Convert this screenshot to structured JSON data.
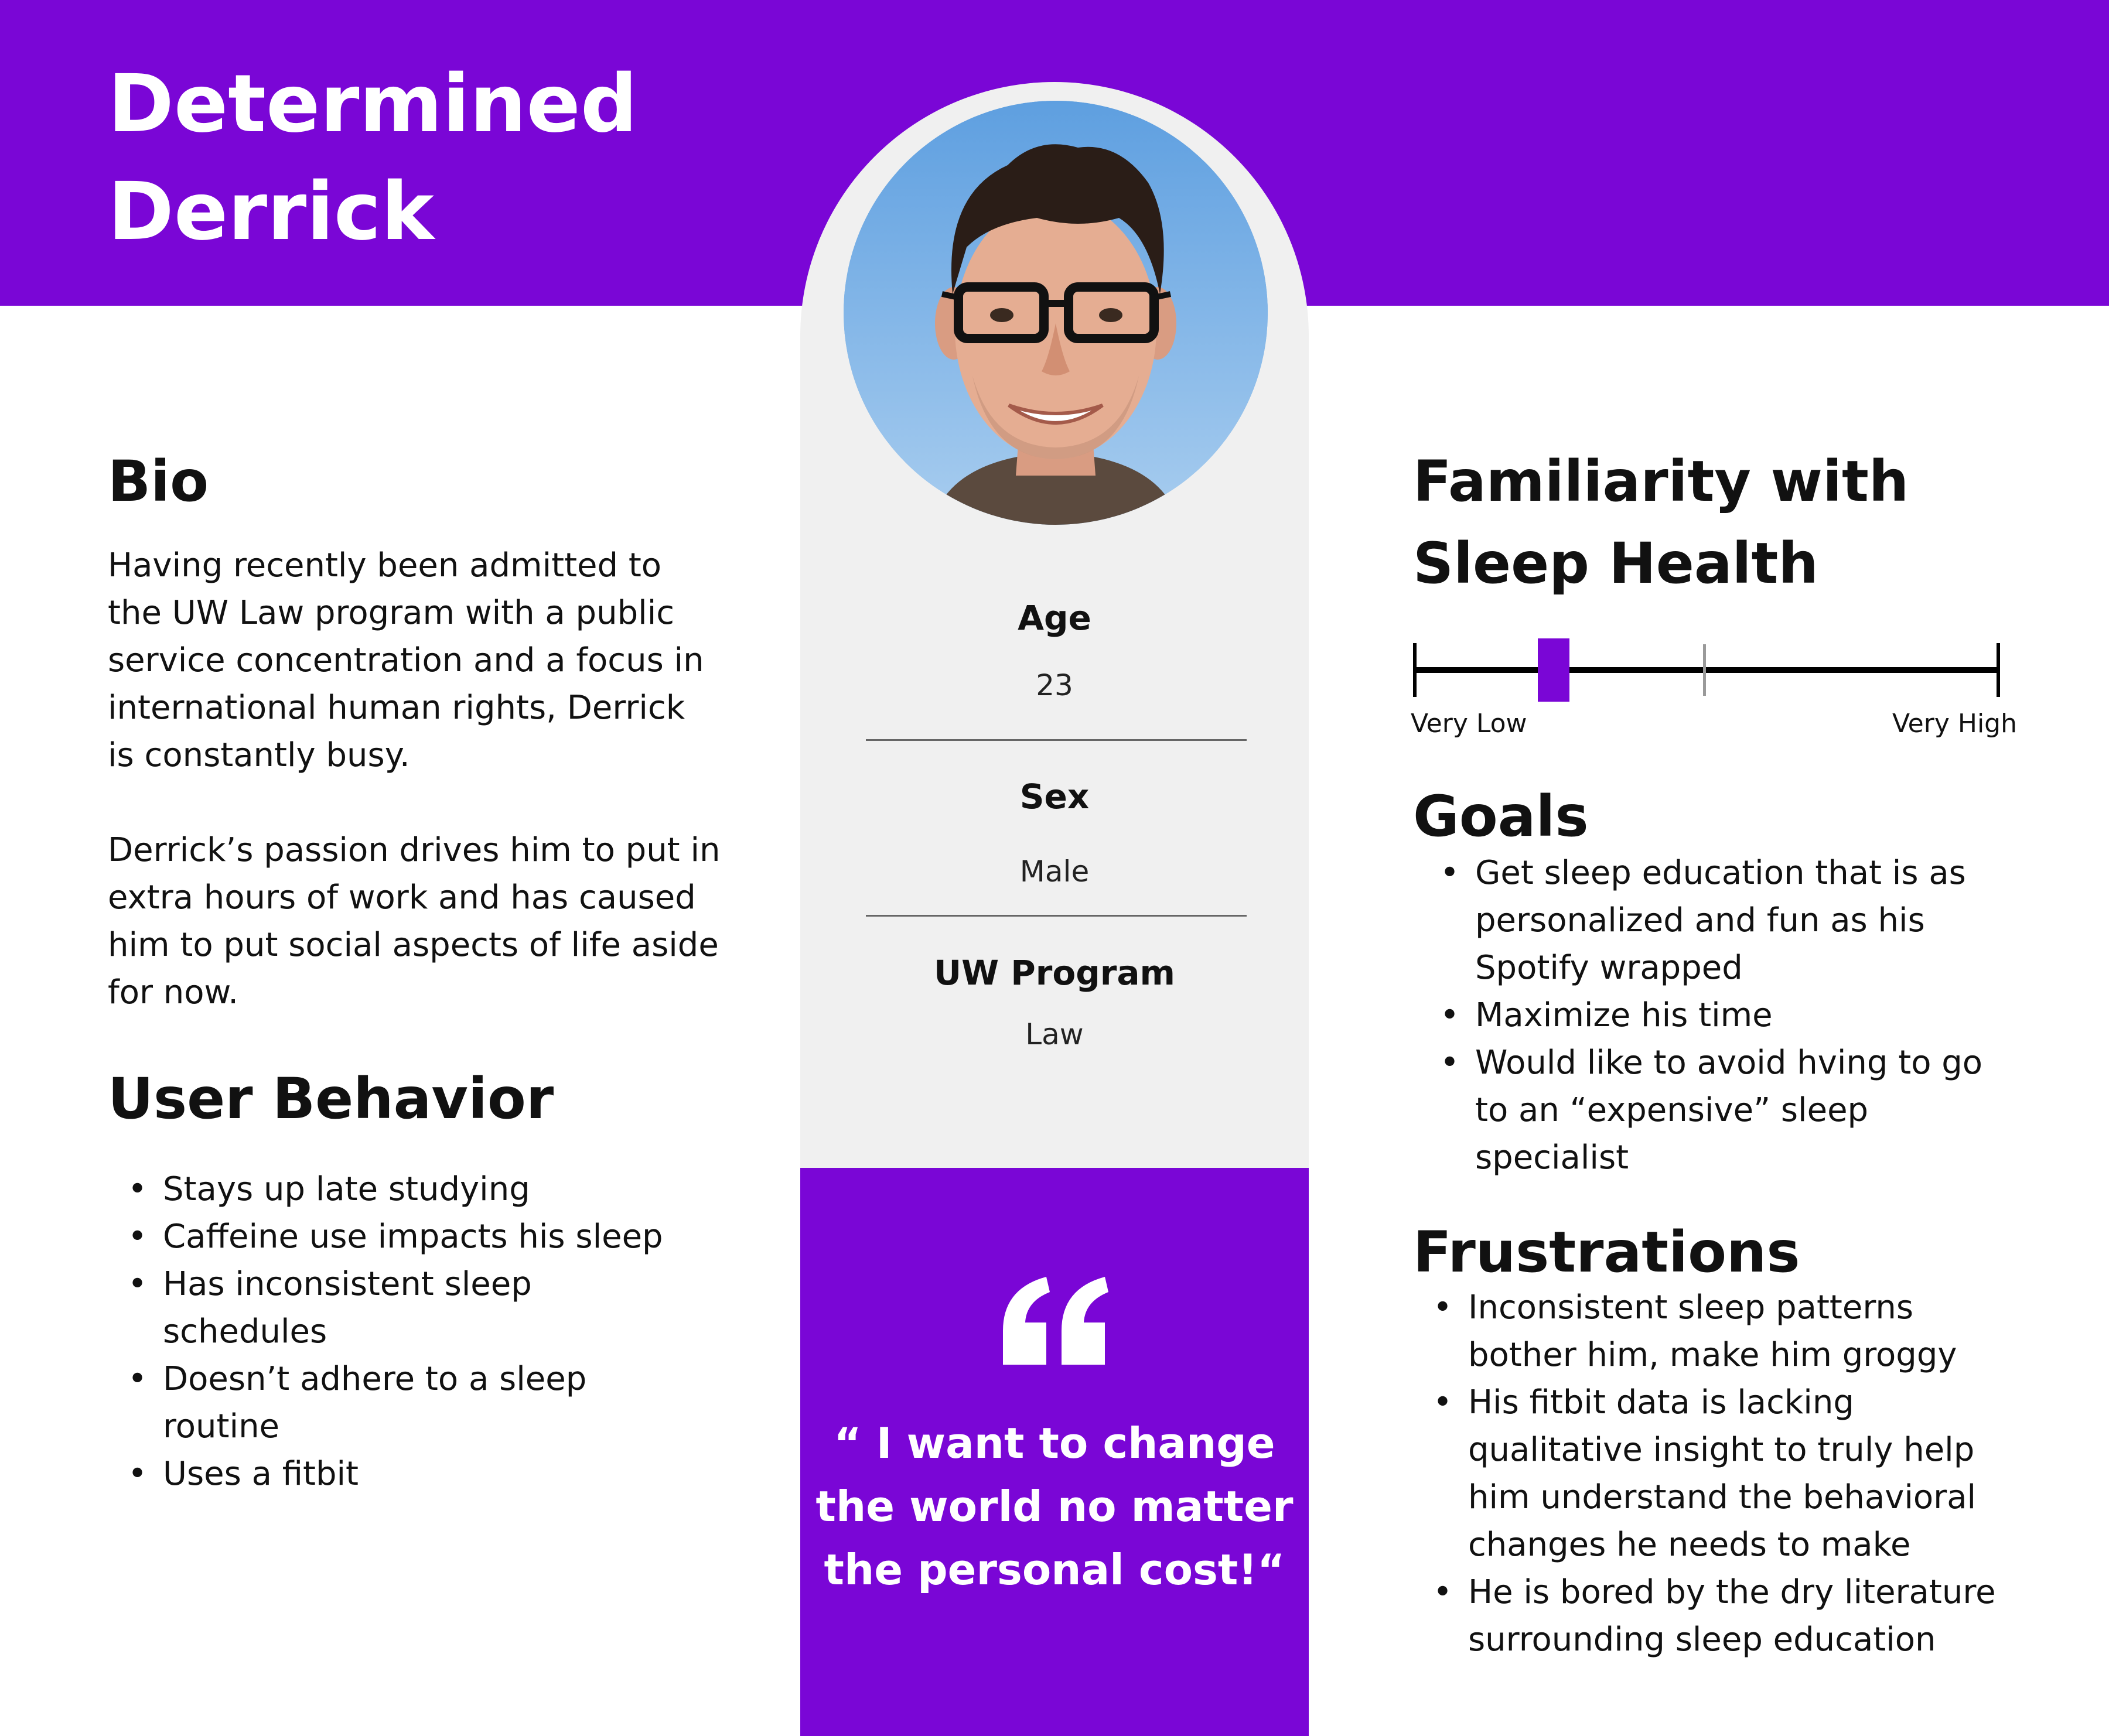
{
  "persona": {
    "title_line1": "Determined",
    "title_line2": "Derrick",
    "avatar": "portrait-photo"
  },
  "bio": {
    "heading": "Bio",
    "paragraph1": "Having recently been admitted to\nthe UW Law program with a public\nservice concentration and a focus in\ninternational human rights, Derrick\nis constantly busy.",
    "paragraph2": "Derrick’s passion drives him to put in\nextra hours of work and has caused\nhim to put social aspects of life aside\nfor now."
  },
  "user_behavior": {
    "heading": "User Behavior",
    "items": [
      "Stays up late studying",
      "Caffeine use impacts his sleep",
      "Has inconsistent sleep\nschedules",
      "Doesn’t adhere to a sleep\nroutine",
      "Uses a fitbit"
    ]
  },
  "stats": {
    "age_label": "Age",
    "age_value": "23",
    "sex_label": "Sex",
    "sex_value": "Male",
    "program_label": "UW Program",
    "program_value": "Law"
  },
  "quote": {
    "icon": "quote-icon",
    "text": "“ I want to change\nthe world no matter\nthe personal cost!“"
  },
  "familiarity": {
    "heading_line1": "Familiarity with",
    "heading_line2": "Sleep Health",
    "low_label": "Very Low",
    "high_label": "Very High",
    "level_fraction": 0.24
  },
  "goals": {
    "heading": "Goals",
    "items": [
      "Get sleep education that is as\npersonalized and fun as his\nSpotify wrapped",
      "Maximize his time",
      "Would like to avoid hving to go\nto an “expensive”  sleep\nspecialist"
    ]
  },
  "frustrations": {
    "heading": "Frustrations",
    "items": [
      "Inconsistent sleep patterns\nbother him, make him groggy",
      "His fitbit data is lacking\nqualitative insight to truly help\nhim understand the behavioral\nchanges he needs to make",
      "He is bored by the dry literature\nsurrounding sleep education"
    ]
  },
  "colors": {
    "accent": "#7a06d6",
    "panel": "#f0f0f0",
    "text": "#111111"
  }
}
